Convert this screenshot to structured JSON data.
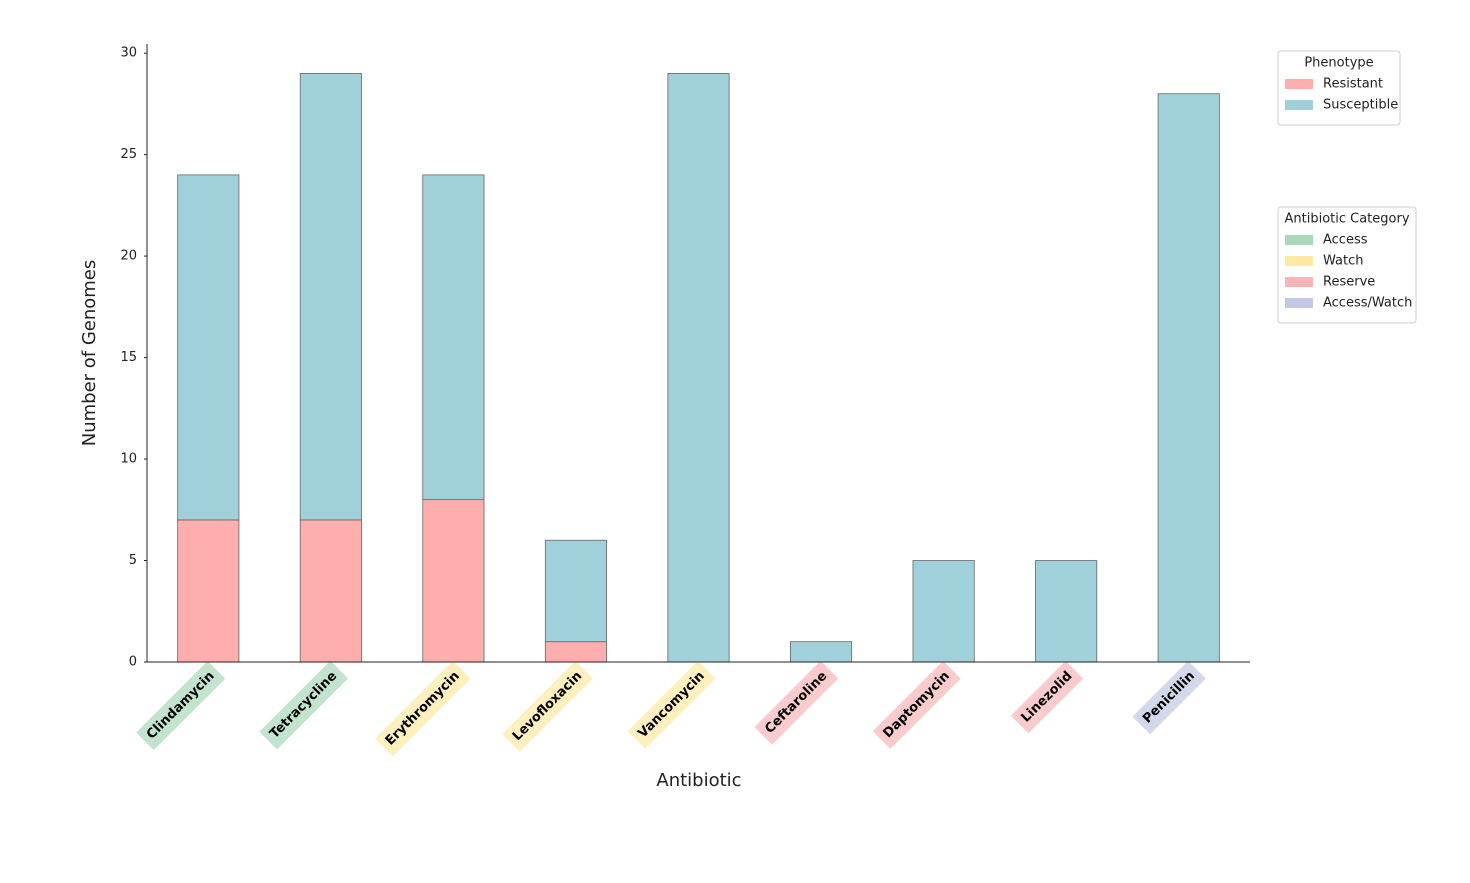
{
  "chart_data": {
    "type": "stacked_bar",
    "x_label": "Antibiotic",
    "y_label": "Number of Genomes",
    "categories": [
      "Clindamycin",
      "Tetracycline",
      "Erythromycin",
      "Levofloxacin",
      "Vancomycin",
      "Ceftaroline",
      "Daptomycin",
      "Linezolid",
      "Penicillin"
    ],
    "category_class": [
      "Access",
      "Access",
      "Watch",
      "Watch",
      "Watch",
      "Reserve",
      "Reserve",
      "Reserve",
      "Access/Watch"
    ],
    "series": [
      {
        "name": "Resistant",
        "color": "#ffaeae",
        "values": [
          7,
          7,
          8,
          1,
          0,
          0,
          0,
          0,
          0
        ]
      },
      {
        "name": "Susceptible",
        "color": "#a0d1da",
        "values": [
          17,
          22,
          16,
          5,
          29,
          1,
          5,
          5,
          28
        ]
      }
    ],
    "legend_title": "Phenotype",
    "category_legend": {
      "title": "Antibiotic Category",
      "entries": [
        {
          "name": "Access",
          "color": "#a8d8b9"
        },
        {
          "name": "Watch",
          "color": "#fde8a4"
        },
        {
          "name": "Reserve",
          "color": "#f7b5b8"
        },
        {
          "name": "Access/Watch",
          "color": "#c2c8e3"
        }
      ]
    },
    "ylim": [
      0,
      30.45
    ],
    "yticks": [
      0,
      5,
      10,
      15,
      20,
      25,
      30
    ]
  }
}
